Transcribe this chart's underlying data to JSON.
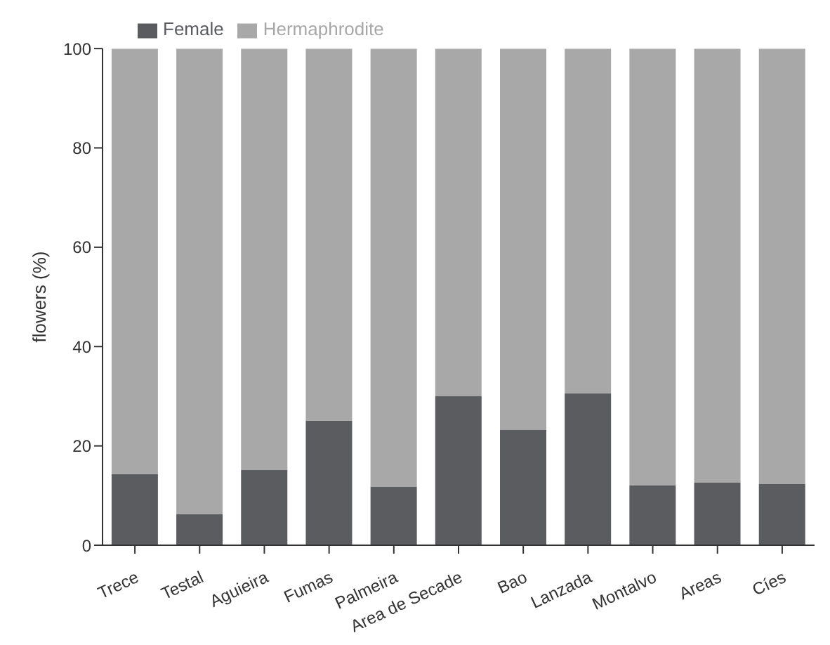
{
  "chart_data": {
    "type": "bar",
    "stacked": true,
    "ylabel": "flowers (%)",
    "categories": [
      "Trece",
      "Testal",
      "Aguieira",
      "Fumas",
      "Palmeira",
      "Area de Secade",
      "Bao",
      "Lanzada",
      "Montalvo",
      "Areas",
      "Cíes"
    ],
    "series": [
      {
        "name": "Female",
        "color": "#5a5c60",
        "values": [
          14.3,
          6.3,
          15.2,
          25.1,
          11.8,
          30.0,
          23.2,
          30.6,
          12.1,
          12.6,
          12.3
        ]
      },
      {
        "name": "Hermaphrodite",
        "color": "#a8a8a8",
        "values": [
          85.7,
          93.7,
          84.8,
          74.9,
          88.2,
          70.0,
          76.8,
          69.4,
          87.9,
          87.4,
          87.7
        ]
      }
    ],
    "ylim": [
      0,
      100
    ],
    "yticks": [
      0,
      20,
      40,
      60,
      80,
      100
    ],
    "grid": false,
    "legend": "top left"
  }
}
